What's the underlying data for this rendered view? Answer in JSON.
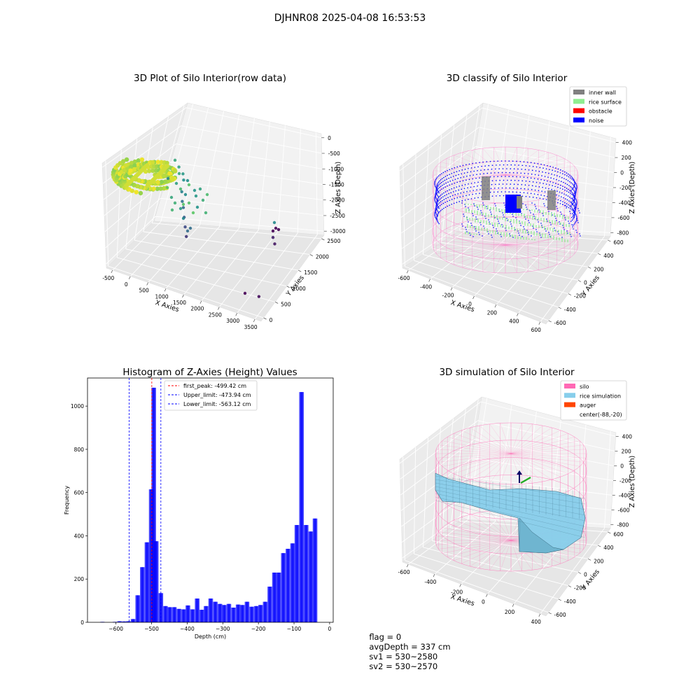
{
  "suptitle": "DJHNR08 2025-04-08 16:53:53",
  "status": {
    "flag": "flag = 0",
    "avg_depth": "avgDepth = 337 cm",
    "sv1": "sv1 = 530~2580",
    "sv2": "sv2 = 530~2570"
  },
  "colors": {
    "inner_wall": "#808080",
    "rice_surface": "#90ee90",
    "obstacle": "#ff0000",
    "noise": "#0000ff",
    "silo": "#ff69b4",
    "rice_simulation": "#87ceeb",
    "auger": "#ff4500",
    "histogram": "#0000ff",
    "first_peak_line": "#ff0000",
    "limit_line": "#0000ff"
  },
  "chart_data": [
    {
      "id": "raw",
      "type": "scatter",
      "title": "3D Plot of Silo Interior(row data)",
      "xlabel": "X Axies",
      "ylabel": "Y Axies",
      "zlabel": "Z Axies (Depth)",
      "x_ticks": [
        "-500",
        "0",
        "500",
        "1000",
        "1500",
        "2000",
        "2500",
        "3000",
        "3500"
      ],
      "y_ticks": [
        "0",
        "500",
        "1000",
        "1500",
        "2000",
        "2500"
      ],
      "z_ticks": [
        "0",
        "-500",
        "-1000",
        "-1500",
        "-2000",
        "-2500",
        "-3000"
      ],
      "xlim": [
        -700,
        3600
      ],
      "ylim": [
        -300,
        2700
      ],
      "zlim": [
        -3100,
        100
      ],
      "colormap": "viridis",
      "points": [
        {
          "x": -400,
          "y": 2300,
          "z": -1200
        },
        {
          "x": -200,
          "y": 2200,
          "z": -1300
        },
        {
          "x": 0,
          "y": 2100,
          "z": -1400
        },
        {
          "x": 100,
          "y": 2000,
          "z": -1500
        },
        {
          "x": 200,
          "y": 1800,
          "z": -1700
        },
        {
          "x": 300,
          "y": 1700,
          "z": -1900
        },
        {
          "x": 400,
          "y": 1600,
          "z": -2000
        },
        {
          "x": 500,
          "y": 1500,
          "z": -2200
        },
        {
          "x": 600,
          "y": 1400,
          "z": -2400
        },
        {
          "x": 700,
          "y": 1300,
          "z": -2600
        },
        {
          "x": 2600,
          "y": 2100,
          "z": -2800
        },
        {
          "x": 2700,
          "y": 2000,
          "z": -2900
        },
        {
          "x": 3200,
          "y": 300,
          "z": -3000
        }
      ]
    },
    {
      "id": "classify",
      "type": "scatter",
      "title": "3D classify of Silo Interior",
      "xlabel": "X Axies",
      "ylabel": "Y Axies",
      "zlabel": "Z Axies (Depth)",
      "x_ticks": [
        "-600",
        "-400",
        "-200",
        "0",
        "200",
        "400",
        "600"
      ],
      "y_ticks": [
        "-600",
        "-400",
        "-200",
        "0",
        "200",
        "400",
        "600"
      ],
      "z_ticks": [
        "400",
        "200",
        "0",
        "-200",
        "-400",
        "-600",
        "-800"
      ],
      "xlim": [
        -700,
        650
      ],
      "ylim": [
        -650,
        650
      ],
      "zlim": [
        -900,
        450
      ],
      "legend": [
        "inner wall",
        "rice surface",
        "obstacle",
        "noise"
      ],
      "legend_loc": "upper right"
    },
    {
      "id": "hist",
      "type": "bar",
      "title": "Histogram of Z-Axies (Height) Values",
      "xlabel": "Depth (cm)",
      "ylabel": "Frequency",
      "xlim": [
        -680,
        10
      ],
      "ylim": [
        0,
        1130
      ],
      "x_ticks": [
        -600,
        -500,
        -400,
        -300,
        -200,
        -100,
        0
      ],
      "y_ticks": [
        0,
        200,
        400,
        600,
        800,
        1000
      ],
      "bin_width": 13,
      "bins": [
        {
          "x": -638,
          "y": 2
        },
        {
          "x": -603,
          "y": 2
        },
        {
          "x": -590,
          "y": 5
        },
        {
          "x": -577,
          "y": 4
        },
        {
          "x": -565,
          "y": 5
        },
        {
          "x": -552,
          "y": 15
        },
        {
          "x": -539,
          "y": 125
        },
        {
          "x": -526,
          "y": 255
        },
        {
          "x": -513,
          "y": 370
        },
        {
          "x": -501,
          "y": 615
        },
        {
          "x": -494,
          "y": 1085
        },
        {
          "x": -487,
          "y": 375
        },
        {
          "x": -474,
          "y": 135
        },
        {
          "x": -461,
          "y": 75
        },
        {
          "x": -449,
          "y": 70
        },
        {
          "x": -436,
          "y": 70
        },
        {
          "x": -423,
          "y": 62
        },
        {
          "x": -410,
          "y": 60
        },
        {
          "x": -398,
          "y": 78
        },
        {
          "x": -385,
          "y": 60
        },
        {
          "x": -372,
          "y": 110
        },
        {
          "x": -359,
          "y": 58
        },
        {
          "x": -347,
          "y": 75
        },
        {
          "x": -334,
          "y": 110
        },
        {
          "x": -321,
          "y": 95
        },
        {
          "x": -308,
          "y": 85
        },
        {
          "x": -296,
          "y": 80
        },
        {
          "x": -283,
          "y": 85
        },
        {
          "x": -270,
          "y": 68
        },
        {
          "x": -257,
          "y": 82
        },
        {
          "x": -245,
          "y": 80
        },
        {
          "x": -232,
          "y": 95
        },
        {
          "x": -219,
          "y": 72
        },
        {
          "x": -206,
          "y": 75
        },
        {
          "x": -194,
          "y": 80
        },
        {
          "x": -181,
          "y": 95
        },
        {
          "x": -168,
          "y": 165
        },
        {
          "x": -155,
          "y": 230
        },
        {
          "x": -143,
          "y": 230
        },
        {
          "x": -130,
          "y": 320
        },
        {
          "x": -117,
          "y": 340
        },
        {
          "x": -104,
          "y": 365
        },
        {
          "x": -92,
          "y": 450
        },
        {
          "x": -79,
          "y": 1065
        },
        {
          "x": -66,
          "y": 450
        },
        {
          "x": -53,
          "y": 420
        },
        {
          "x": -41,
          "y": 480
        }
      ],
      "vlines": [
        {
          "x": -499.42,
          "label": "first_peak: -499.42 cm",
          "color": "#ff0000"
        },
        {
          "x": -473.94,
          "label": "Upper_limit: -473.94 cm",
          "color": "#0000ff"
        },
        {
          "x": -563.12,
          "label": "Lower_limit: -563.12 cm",
          "color": "#0000ff"
        }
      ],
      "legend_loc": "upper left"
    },
    {
      "id": "simulation",
      "type": "surface",
      "title": "3D simulation of Silo Interior",
      "xlabel": "X Axies",
      "ylabel": "Y Axies",
      "zlabel": "Z Axies (Depth)",
      "x_ticks": [
        "-600",
        "-400",
        "-200",
        "0",
        "200",
        "400"
      ],
      "y_ticks": [
        "-600",
        "-400",
        "-200",
        "0",
        "200",
        "400",
        "600"
      ],
      "z_ticks": [
        "400",
        "200",
        "0",
        "-200",
        "-400",
        "-600",
        "-800"
      ],
      "xlim": [
        -700,
        550
      ],
      "ylim": [
        -650,
        650
      ],
      "zlim": [
        -900,
        450
      ],
      "legend": [
        "silo",
        "rice simulation",
        "auger",
        "center(-88,-20)"
      ],
      "legend_loc": "upper right"
    }
  ]
}
